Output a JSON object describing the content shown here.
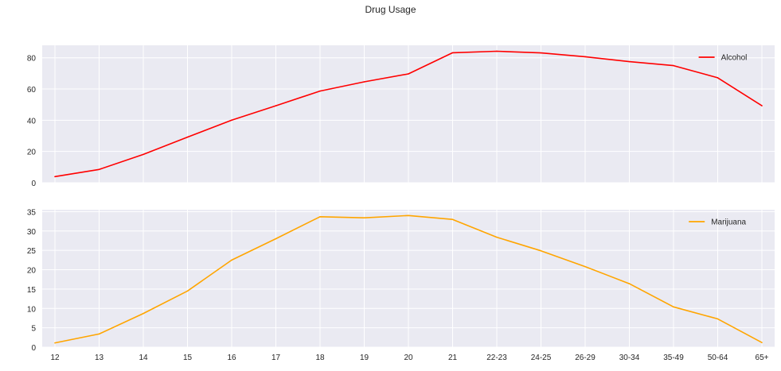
{
  "figure": {
    "title": "Drug Usage"
  },
  "colors": {
    "background": "#eaeaf2",
    "grid": "#ffffff",
    "text": "#262626"
  },
  "chart_data": [
    {
      "type": "line",
      "categories": [
        "12",
        "13",
        "14",
        "15",
        "16",
        "17",
        "18",
        "19",
        "20",
        "21",
        "22-23",
        "24-25",
        "26-29",
        "30-34",
        "35-49",
        "50-64",
        "65+"
      ],
      "series": [
        {
          "name": "Alcohol",
          "color": "#ff0000",
          "values": [
            3.9,
            8.5,
            18.1,
            29.2,
            40.1,
            49.3,
            58.7,
            64.6,
            69.7,
            83.2,
            84.2,
            83.1,
            80.7,
            77.5,
            75.0,
            67.2,
            49.3
          ]
        }
      ],
      "ylim": [
        0,
        88
      ],
      "yticks": [
        0,
        20,
        40,
        60,
        80
      ],
      "xlabel": "",
      "ylabel": "",
      "grid": true,
      "legend": "top-right",
      "show_xticklabels": false
    },
    {
      "type": "line",
      "categories": [
        "12",
        "13",
        "14",
        "15",
        "16",
        "17",
        "18",
        "19",
        "20",
        "21",
        "22-23",
        "24-25",
        "26-29",
        "30-34",
        "35-49",
        "50-64",
        "65+"
      ],
      "series": [
        {
          "name": "Marijuana",
          "color": "#ffa500",
          "values": [
            1.1,
            3.4,
            8.7,
            14.5,
            22.5,
            28.0,
            33.7,
            33.4,
            34.0,
            33.0,
            28.4,
            24.9,
            20.8,
            16.4,
            10.4,
            7.3,
            1.2
          ]
        }
      ],
      "ylim": [
        0,
        35.5
      ],
      "yticks": [
        0,
        5,
        10,
        15,
        20,
        25,
        30,
        35
      ],
      "xlabel": "",
      "ylabel": "",
      "grid": true,
      "legend": "top-right",
      "show_xticklabels": true
    }
  ]
}
